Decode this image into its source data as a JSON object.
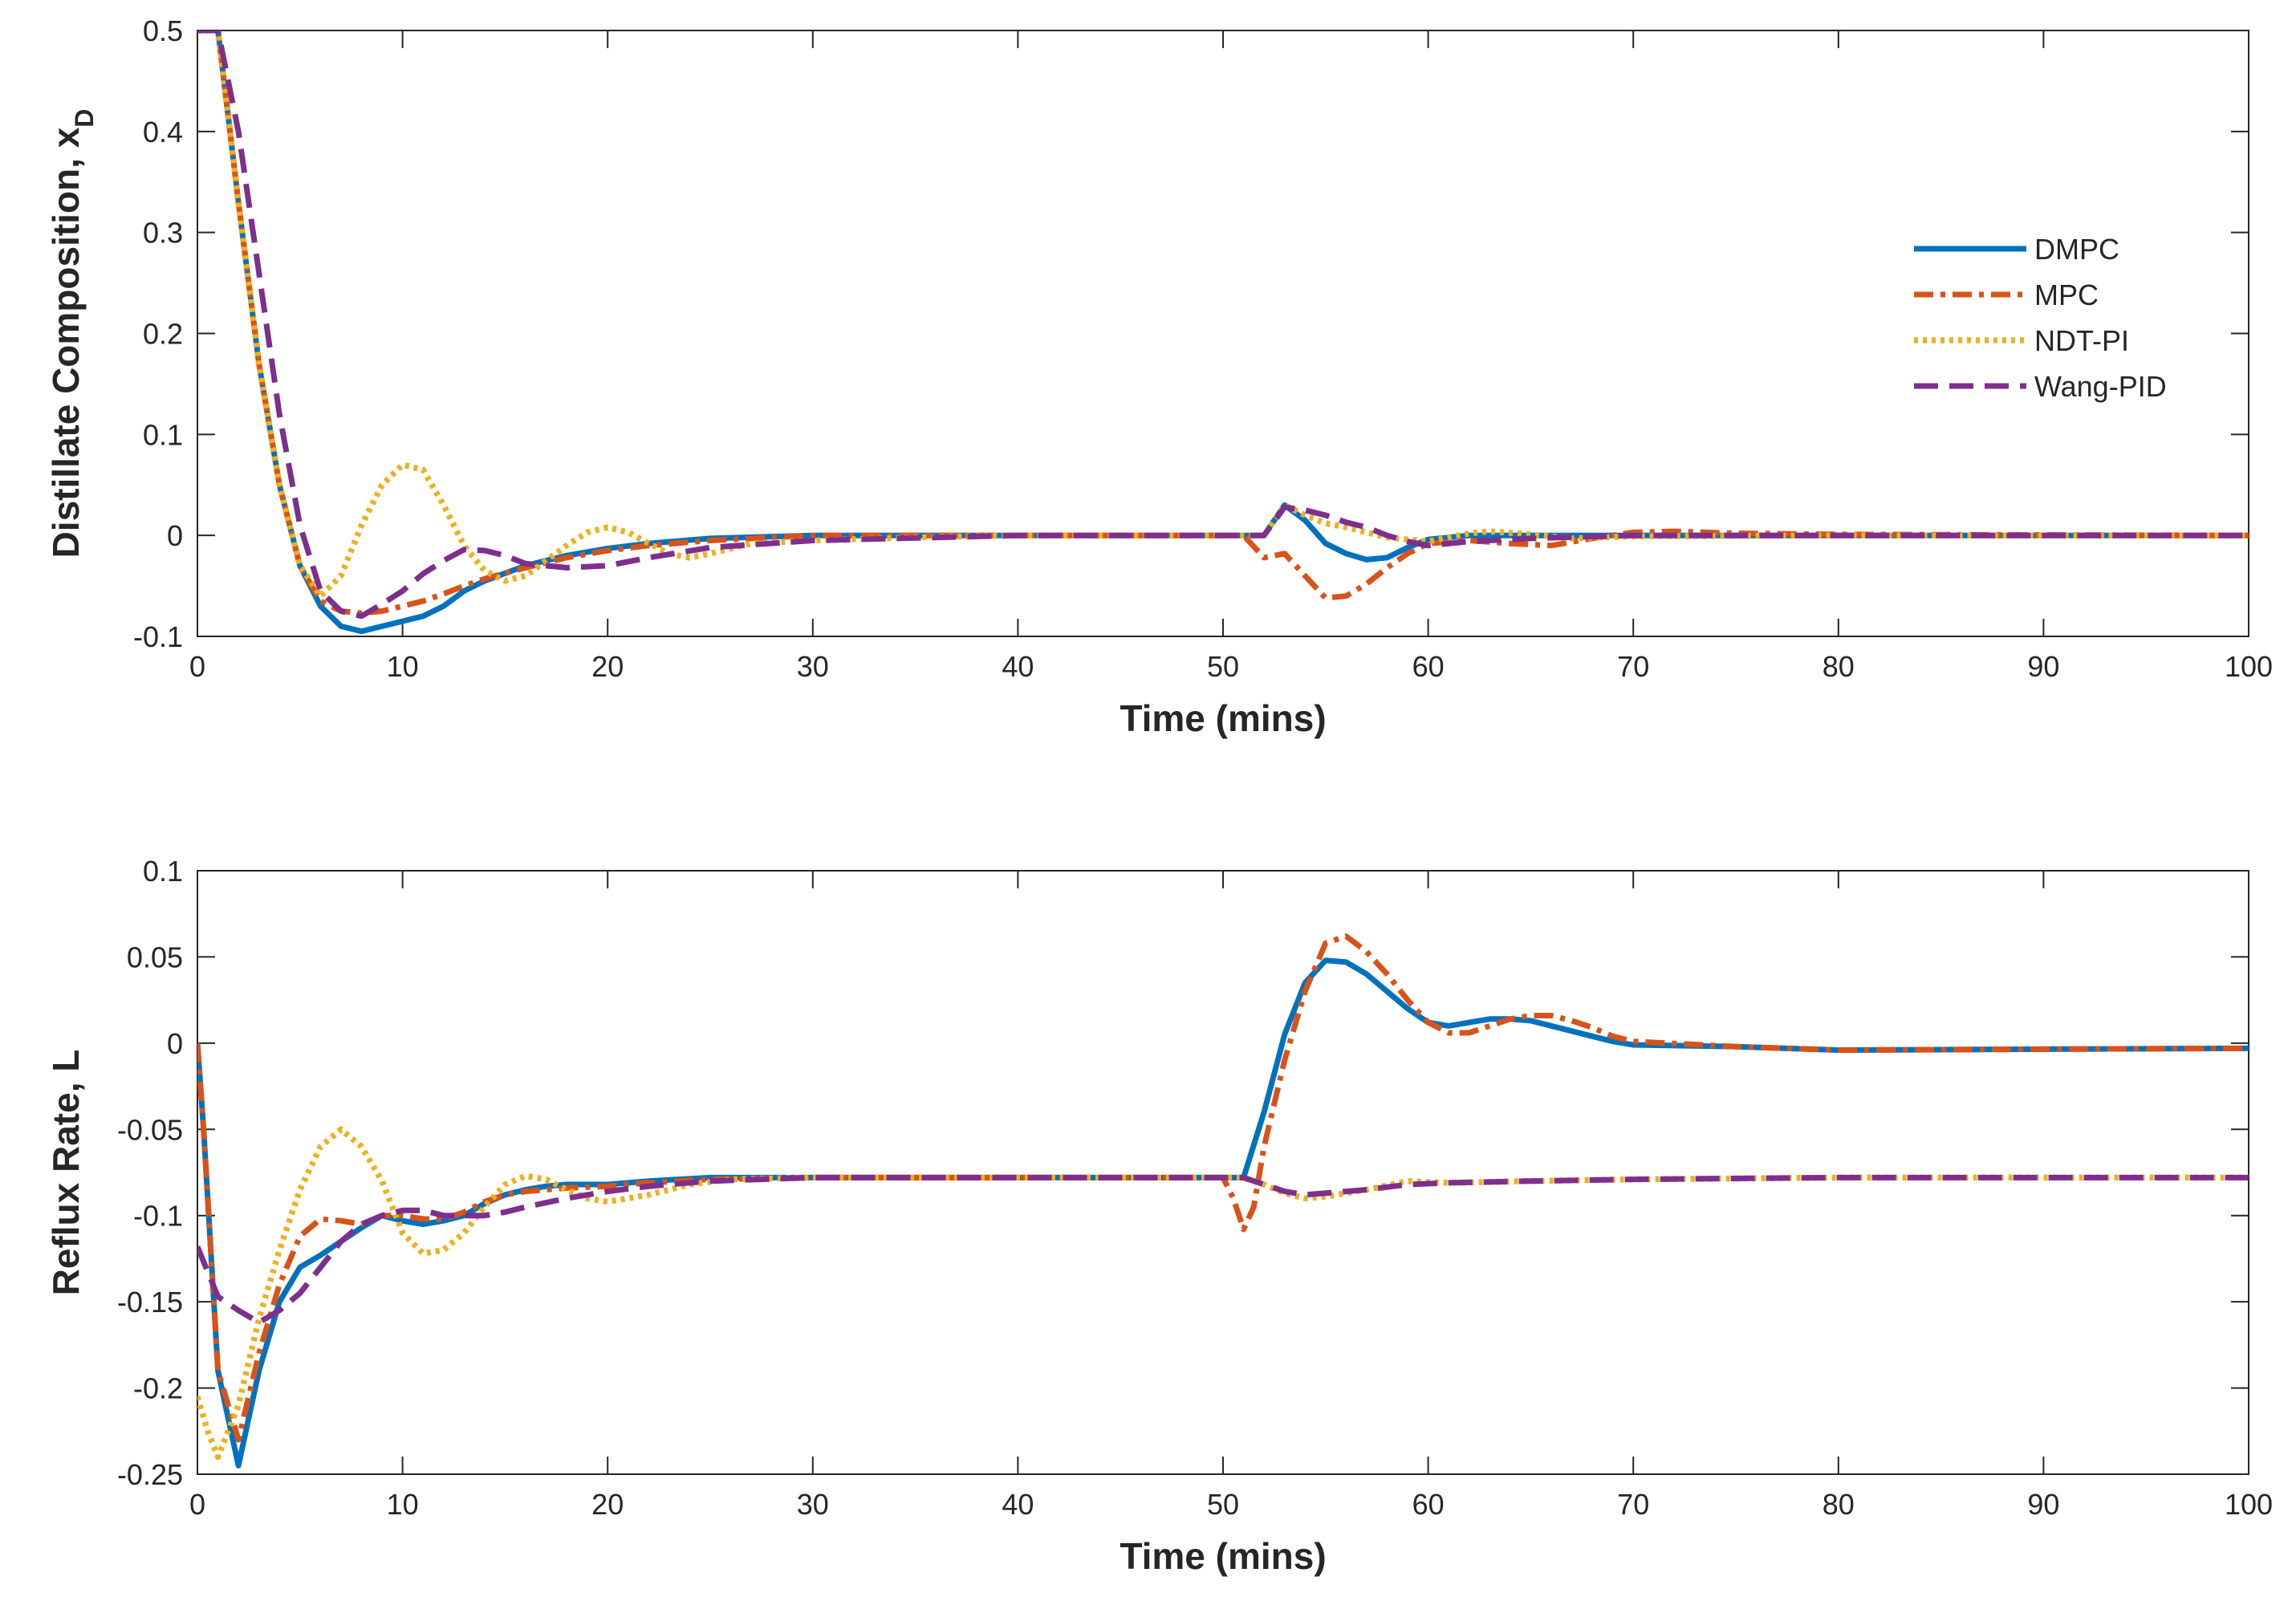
{
  "chart_data": [
    {
      "type": "line",
      "title": "",
      "xlabel": "Time (mins)",
      "ylabel": "Distillate Composition, x",
      "ylabel_sub": "D",
      "xlim": [
        0,
        100
      ],
      "ylim": [
        -0.1,
        0.5
      ],
      "xticks": [
        0,
        10,
        20,
        30,
        40,
        50,
        60,
        70,
        80,
        90,
        100
      ],
      "yticks": [
        -0.1,
        0,
        0.1,
        0.2,
        0.3,
        0.4,
        0.5
      ],
      "xtick_labels": [
        "0",
        "10",
        "20",
        "30",
        "40",
        "50",
        "60",
        "70",
        "80",
        "90",
        "100"
      ],
      "ytick_labels": [
        "-0.1",
        "0",
        "0.1",
        "0.2",
        "0.3",
        "0.4",
        "0.5"
      ],
      "legend": {
        "position": "right",
        "entries": [
          "DMPC",
          "MPC",
          "NDT-PI",
          "Wang-PID"
        ]
      },
      "series": [
        {
          "name": "DMPC",
          "color": "#0072BD",
          "dash": "solid",
          "x": [
            0,
            1,
            2,
            3,
            4,
            5,
            6,
            7,
            8,
            9,
            10,
            11,
            12,
            13,
            14,
            16,
            18,
            20,
            22,
            25,
            30,
            40,
            50,
            51,
            52,
            53,
            54,
            55,
            56,
            57,
            58,
            59,
            60,
            62,
            65,
            70,
            80,
            100
          ],
          "y": [
            0.5,
            0.5,
            0.33,
            0.17,
            0.05,
            -0.03,
            -0.07,
            -0.09,
            -0.095,
            -0.09,
            -0.085,
            -0.08,
            -0.07,
            -0.055,
            -0.045,
            -0.03,
            -0.02,
            -0.013,
            -0.008,
            -0.003,
            0,
            0,
            0,
            0,
            0,
            0.03,
            0.015,
            -0.008,
            -0.018,
            -0.024,
            -0.022,
            -0.012,
            -0.004,
            0,
            0,
            0,
            0,
            0
          ]
        },
        {
          "name": "MPC",
          "color": "#D95319",
          "dash": "dashdot",
          "x": [
            0,
            1,
            2,
            3,
            4,
            5,
            6,
            7,
            8,
            9,
            10,
            11,
            12,
            13,
            14,
            16,
            18,
            20,
            22,
            25,
            30,
            40,
            50,
            51,
            52,
            53,
            54,
            55,
            56,
            57,
            58,
            59,
            60,
            62,
            64,
            66,
            68,
            70,
            72,
            75,
            80,
            100
          ],
          "y": [
            0.5,
            0.5,
            0.33,
            0.17,
            0.05,
            -0.03,
            -0.065,
            -0.075,
            -0.077,
            -0.075,
            -0.07,
            -0.065,
            -0.058,
            -0.05,
            -0.043,
            -0.032,
            -0.022,
            -0.015,
            -0.01,
            -0.005,
            0,
            0,
            0,
            0,
            -0.022,
            -0.018,
            -0.04,
            -0.062,
            -0.06,
            -0.048,
            -0.032,
            -0.018,
            -0.008,
            -0.005,
            -0.008,
            -0.01,
            -0.003,
            0.003,
            0.004,
            0.002,
            0.001,
            0
          ]
        },
        {
          "name": "NDT-PI",
          "color": "#EDB120",
          "dash": "dotted",
          "x": [
            0,
            1,
            2,
            3,
            4,
            5,
            6,
            7,
            8,
            9,
            10,
            11,
            12,
            13,
            14,
            15,
            16,
            17,
            18,
            19,
            20,
            21,
            22,
            23,
            24,
            25,
            27,
            30,
            35,
            40,
            50,
            51,
            52,
            53,
            54,
            55,
            56,
            58,
            60,
            62,
            63,
            65,
            67,
            70,
            80,
            100
          ],
          "y": [
            0.5,
            0.5,
            0.33,
            0.17,
            0.05,
            -0.03,
            -0.06,
            -0.04,
            0.01,
            0.05,
            0.07,
            0.065,
            0.03,
            -0.01,
            -0.035,
            -0.045,
            -0.04,
            -0.025,
            -0.01,
            0.003,
            0.008,
            0.003,
            -0.008,
            -0.018,
            -0.022,
            -0.018,
            -0.008,
            -0.005,
            -0.002,
            0,
            0,
            0,
            0,
            0.03,
            0.02,
            0.012,
            0.008,
            -0.002,
            -0.006,
            0.002,
            0.004,
            0.001,
            -0.003,
            -0.001,
            0,
            0
          ]
        },
        {
          "name": "Wang-PID",
          "color": "#7E2F8E",
          "dash": "dashed",
          "x": [
            0,
            1,
            2,
            3,
            4,
            5,
            6,
            7,
            8,
            9,
            10,
            11,
            12,
            13,
            14,
            15,
            16,
            18,
            20,
            22,
            25,
            30,
            40,
            50,
            51,
            52,
            53,
            54,
            55,
            56,
            57,
            58,
            59,
            60,
            62,
            65,
            70,
            100
          ],
          "y": [
            0.5,
            0.5,
            0.4,
            0.26,
            0.12,
            0.01,
            -0.055,
            -0.075,
            -0.08,
            -0.068,
            -0.055,
            -0.038,
            -0.025,
            -0.014,
            -0.015,
            -0.02,
            -0.028,
            -0.032,
            -0.03,
            -0.022,
            -0.012,
            -0.005,
            0,
            0,
            0,
            0,
            0.028,
            0.025,
            0.02,
            0.013,
            0.008,
            0,
            -0.006,
            -0.01,
            -0.006,
            -0.003,
            0,
            0
          ]
        }
      ]
    },
    {
      "type": "line",
      "title": "",
      "xlabel": "Time (mins)",
      "ylabel": "Reflux Rate, L",
      "xlim": [
        0,
        100
      ],
      "ylim": [
        -0.25,
        0.1
      ],
      "xticks": [
        0,
        10,
        20,
        30,
        40,
        50,
        60,
        70,
        80,
        90,
        100
      ],
      "yticks": [
        -0.25,
        -0.2,
        -0.15,
        -0.1,
        -0.05,
        0,
        0.05,
        0.1
      ],
      "xtick_labels": [
        "0",
        "10",
        "20",
        "30",
        "40",
        "50",
        "60",
        "70",
        "80",
        "90",
        "100"
      ],
      "ytick_labels": [
        "-0.25",
        "-0.2",
        "-0.15",
        "-0.1",
        "-0.05",
        "0",
        "0.05",
        "0.1"
      ],
      "series": [
        {
          "name": "DMPC",
          "color": "#0072BD",
          "dash": "solid",
          "x": [
            0,
            0.3,
            1,
            2,
            3,
            4,
            5,
            6,
            7,
            8,
            9,
            10,
            11,
            12,
            13,
            14,
            15,
            16,
            17,
            18,
            20,
            22,
            25,
            30,
            40,
            50,
            51,
            52,
            53,
            54,
            55,
            56,
            57,
            58,
            59,
            60,
            61,
            62,
            63,
            64,
            65,
            66,
            67,
            68,
            69,
            70,
            75,
            80,
            100
          ],
          "y": [
            0,
            -0.05,
            -0.19,
            -0.245,
            -0.19,
            -0.15,
            -0.13,
            -0.123,
            -0.115,
            -0.107,
            -0.1,
            -0.103,
            -0.105,
            -0.103,
            -0.1,
            -0.093,
            -0.088,
            -0.085,
            -0.083,
            -0.082,
            -0.082,
            -0.08,
            -0.078,
            -0.078,
            -0.078,
            -0.078,
            -0.078,
            -0.04,
            0.005,
            0.035,
            0.048,
            0.047,
            0.04,
            0.03,
            0.02,
            0.012,
            0.01,
            0.012,
            0.014,
            0.014,
            0.013,
            0.01,
            0.007,
            0.004,
            0.001,
            -0.001,
            -0.002,
            -0.004,
            -0.003
          ]
        },
        {
          "name": "MPC",
          "color": "#D95319",
          "dash": "dashdot",
          "x": [
            0,
            0.3,
            1,
            2,
            3,
            4,
            5,
            6,
            7,
            8,
            9,
            10,
            11,
            12,
            13,
            14,
            15,
            16,
            17,
            18,
            20,
            22,
            25,
            30,
            40,
            50,
            50.5,
            51,
            51.5,
            52,
            53,
            54,
            55,
            56,
            57,
            58,
            59,
            60,
            61,
            62,
            63,
            64,
            65,
            66,
            67,
            68,
            69,
            70,
            75,
            80,
            100
          ],
          "y": [
            0,
            -0.05,
            -0.19,
            -0.23,
            -0.18,
            -0.14,
            -0.112,
            -0.102,
            -0.103,
            -0.105,
            -0.1,
            -0.1,
            -0.102,
            -0.102,
            -0.098,
            -0.092,
            -0.088,
            -0.086,
            -0.085,
            -0.084,
            -0.083,
            -0.081,
            -0.079,
            -0.078,
            -0.078,
            -0.078,
            -0.09,
            -0.108,
            -0.095,
            -0.06,
            -0.01,
            0.03,
            0.058,
            0.062,
            0.053,
            0.04,
            0.025,
            0.012,
            0.006,
            0.006,
            0.01,
            0.014,
            0.016,
            0.016,
            0.013,
            0.009,
            0.004,
            0.001,
            -0.002,
            -0.004,
            -0.003
          ]
        },
        {
          "name": "NDT-PI",
          "color": "#EDB120",
          "dash": "dotted",
          "x": [
            0,
            0.5,
            1,
            2,
            3,
            4,
            5,
            6,
            7,
            8,
            9,
            10,
            11,
            12,
            13,
            14,
            15,
            16,
            17,
            18,
            19,
            20,
            22,
            24,
            26,
            30,
            40,
            50,
            51,
            52,
            53,
            54,
            55,
            57,
            59,
            61,
            65,
            70,
            80,
            100
          ],
          "y": [
            -0.205,
            -0.225,
            -0.24,
            -0.21,
            -0.16,
            -0.12,
            -0.085,
            -0.06,
            -0.05,
            -0.06,
            -0.08,
            -0.11,
            -0.122,
            -0.12,
            -0.11,
            -0.095,
            -0.082,
            -0.077,
            -0.079,
            -0.085,
            -0.09,
            -0.092,
            -0.088,
            -0.082,
            -0.079,
            -0.078,
            -0.078,
            -0.078,
            -0.078,
            -0.082,
            -0.087,
            -0.09,
            -0.089,
            -0.085,
            -0.08,
            -0.081,
            -0.08,
            -0.079,
            -0.078,
            -0.078
          ]
        },
        {
          "name": "Wang-PID",
          "color": "#7E2F8E",
          "dash": "dashed",
          "x": [
            0,
            1,
            2,
            3,
            4,
            5,
            6,
            7,
            8,
            9,
            10,
            11,
            12,
            13,
            14,
            15,
            16,
            18,
            20,
            22,
            25,
            30,
            40,
            50,
            51,
            52,
            53,
            54,
            55,
            57,
            59,
            61,
            65,
            70,
            80,
            100
          ],
          "y": [
            -0.118,
            -0.147,
            -0.155,
            -0.162,
            -0.155,
            -0.145,
            -0.13,
            -0.115,
            -0.105,
            -0.1,
            -0.097,
            -0.097,
            -0.1,
            -0.1,
            -0.1,
            -0.098,
            -0.095,
            -0.09,
            -0.086,
            -0.083,
            -0.08,
            -0.078,
            -0.078,
            -0.078,
            -0.078,
            -0.082,
            -0.086,
            -0.088,
            -0.087,
            -0.085,
            -0.082,
            -0.081,
            -0.08,
            -0.079,
            -0.078,
            -0.078
          ]
        }
      ]
    }
  ]
}
